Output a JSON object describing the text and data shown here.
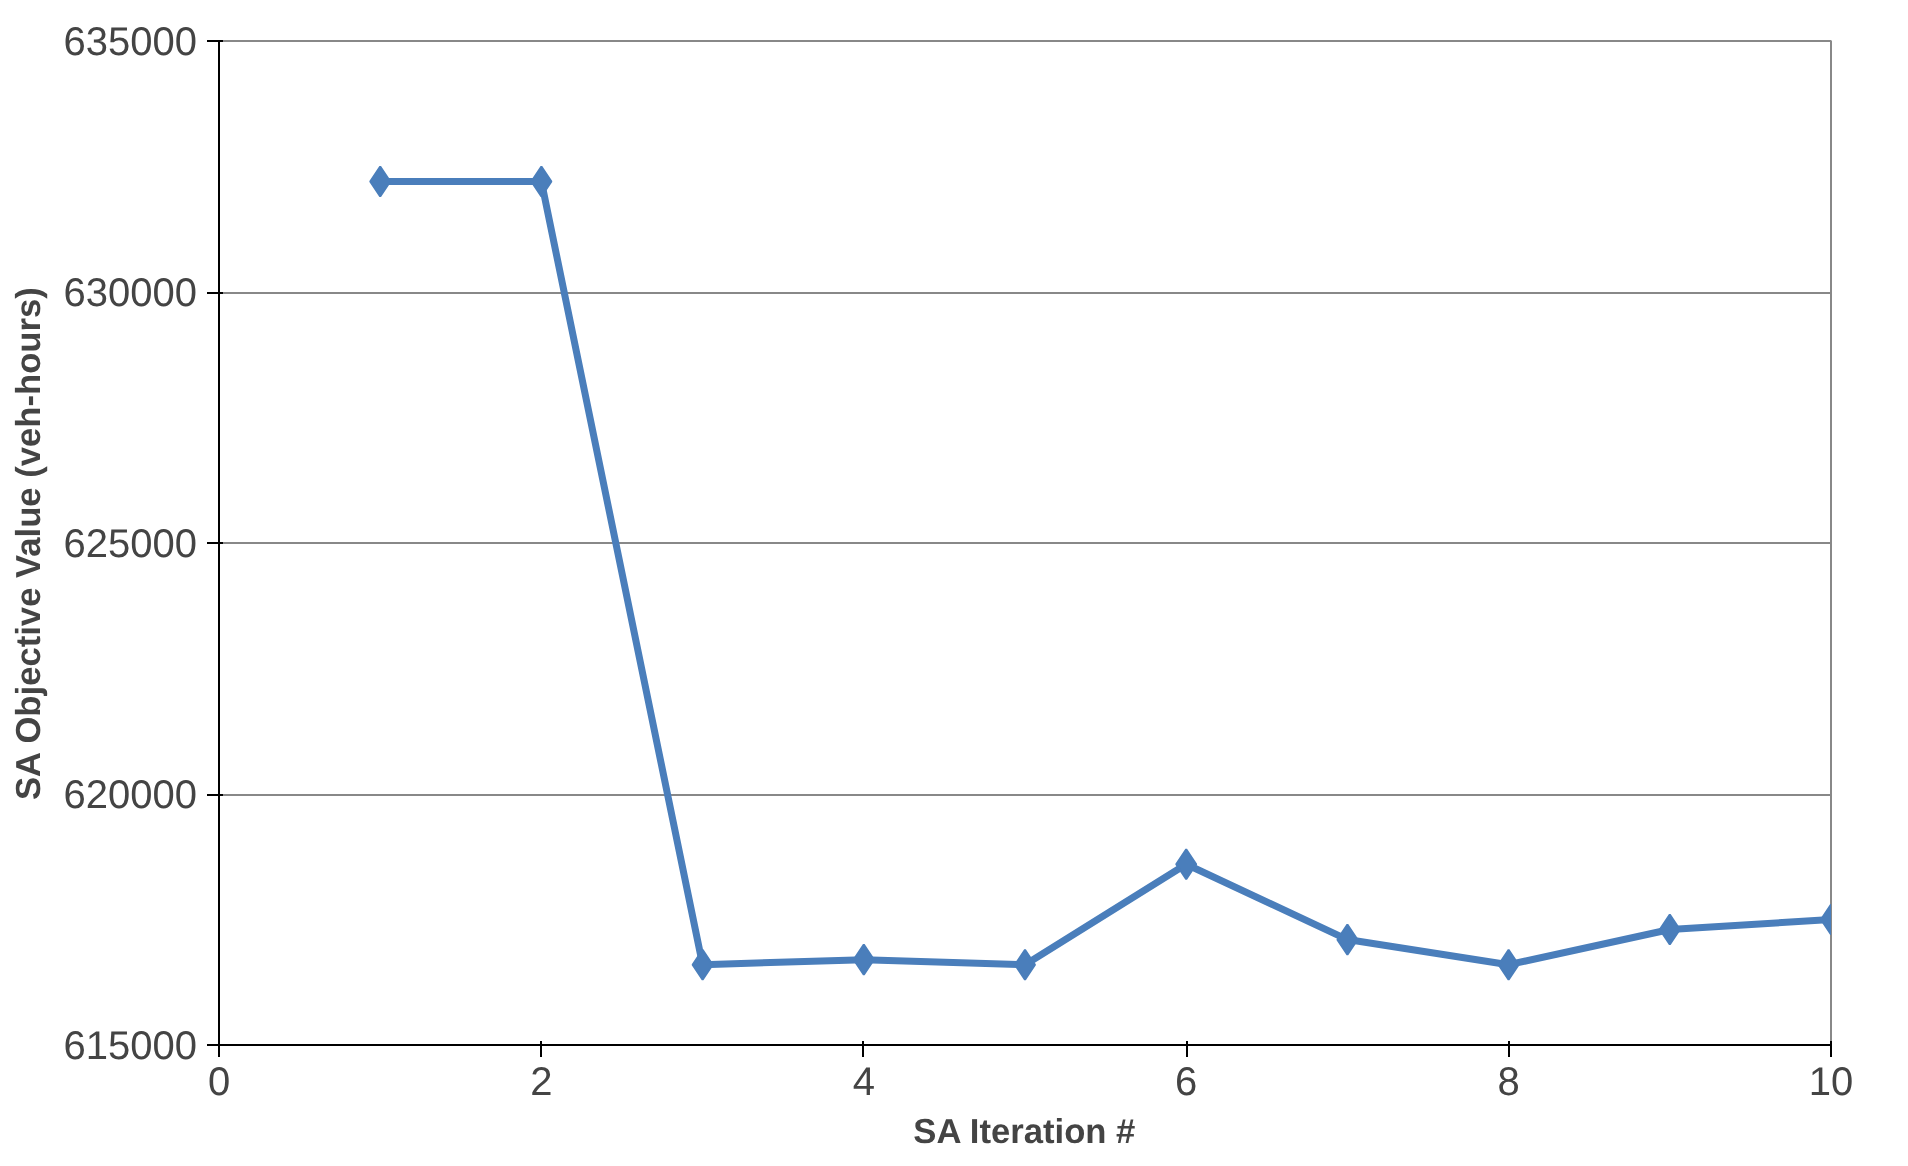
{
  "chart_data": {
    "type": "line",
    "xlabel": "SA Iteration #",
    "ylabel": "SA Objective Value (veh-hours)",
    "x": [
      1,
      2,
      3,
      4,
      5,
      6,
      7,
      8,
      9,
      10
    ],
    "series": [
      {
        "color": "#4a7ebb",
        "values": [
          632200,
          632200,
          616600,
          616700,
          616600,
          618600,
          617100,
          616600,
          617300,
          617500
        ]
      }
    ],
    "xlim": [
      0,
      10
    ],
    "xticks": [
      0,
      2,
      4,
      6,
      8,
      10
    ],
    "ylim": [
      615000,
      635000
    ],
    "yticks": [
      615000,
      620000,
      625000,
      630000,
      635000
    ],
    "grid": "y",
    "marker": "diamond",
    "line_style": "solid"
  }
}
